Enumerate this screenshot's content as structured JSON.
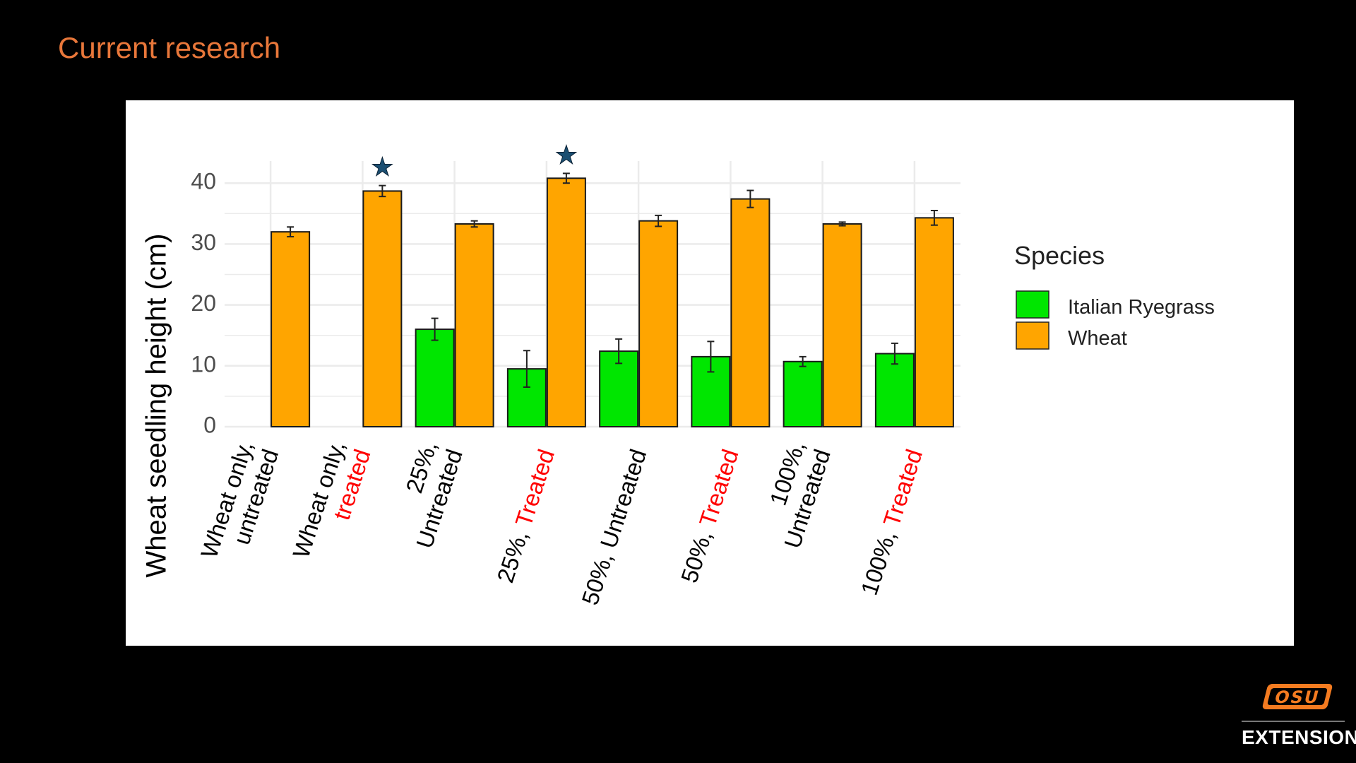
{
  "slide": {
    "title": "Current research"
  },
  "brand": {
    "logo_text": "OSU",
    "text": "EXTENSION"
  },
  "colors": {
    "ryegrass": "#00E600",
    "wheat": "#FFA500",
    "star": "#1B4F72",
    "treated": "#FF0000",
    "title": "#E8773A"
  },
  "chart_data": {
    "type": "bar",
    "ylabel": "Wheat seedling height (cm)",
    "ylim": [
      0,
      44
    ],
    "yticks": [
      0,
      10,
      20,
      30,
      40
    ],
    "grid": true,
    "legend": {
      "title": "Species",
      "position": "right",
      "entries": [
        "Italian Ryegrass",
        "Wheat"
      ]
    },
    "categories": [
      {
        "label": [
          {
            "t": "Wheat only,",
            "red": false
          },
          {
            "t": "untreated",
            "red": false
          }
        ]
      },
      {
        "label": [
          {
            "t": "Wheat only,",
            "red": false
          },
          {
            "t": "treated",
            "red": true
          }
        ]
      },
      {
        "label": [
          {
            "t": "25%,",
            "red": false
          },
          {
            "t": "Untreated",
            "red": false
          }
        ]
      },
      {
        "label": [
          {
            "t": "25%, ",
            "red": false,
            "inline": [
              {
                "t": "Treated",
                "red": true
              }
            ]
          }
        ]
      },
      {
        "label": [
          {
            "t": "50%, Untreated",
            "red": false
          }
        ]
      },
      {
        "label": [
          {
            "t": "50%, ",
            "red": false,
            "inline": [
              {
                "t": "Treated",
                "red": true
              }
            ]
          }
        ]
      },
      {
        "label": [
          {
            "t": "100%,",
            "red": false
          },
          {
            "t": "Untreated",
            "red": false
          }
        ]
      },
      {
        "label": [
          {
            "t": "100%, ",
            "red": false,
            "inline": [
              {
                "t": "Treated",
                "red": true
              }
            ]
          }
        ]
      }
    ],
    "series": [
      {
        "name": "Italian Ryegrass",
        "values": [
          null,
          null,
          16,
          9.5,
          12.4,
          11.5,
          10.7,
          12
        ],
        "errors": [
          null,
          null,
          1.8,
          3,
          2,
          2.5,
          0.8,
          1.7
        ]
      },
      {
        "name": "Wheat",
        "values": [
          32,
          38.7,
          33.3,
          40.8,
          33.8,
          37.4,
          33.3,
          34.3
        ],
        "errors": [
          0.8,
          0.9,
          0.5,
          0.8,
          0.9,
          1.4,
          0.3,
          1.2
        ]
      }
    ],
    "significance_marks": [
      {
        "category_index": 1,
        "symbol": "★"
      },
      {
        "category_index": 3,
        "symbol": "★"
      }
    ]
  }
}
